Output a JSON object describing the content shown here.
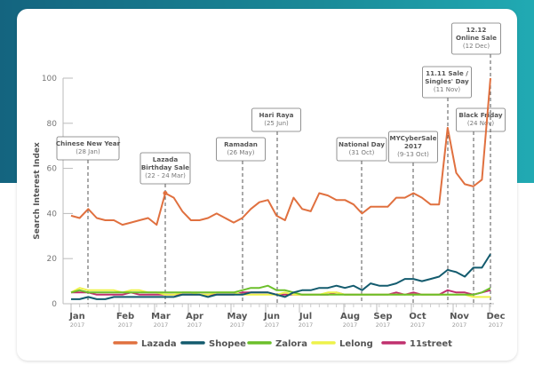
{
  "chart_data": {
    "type": "line",
    "title": "",
    "xlabel": "",
    "ylabel": "Search Interest Index",
    "ylim": [
      0,
      100
    ],
    "yticks": [
      0,
      20,
      40,
      60,
      80,
      100
    ],
    "grid": false,
    "legend_position": "bottom",
    "x_ticks": [
      {
        "month": "Jan",
        "year": "2017"
      },
      {
        "month": "Feb",
        "year": "2017"
      },
      {
        "month": "Mar",
        "year": "2017"
      },
      {
        "month": "Apr",
        "year": "2017"
      },
      {
        "month": "May",
        "year": "2017"
      },
      {
        "month": "Jun",
        "year": "2017"
      },
      {
        "month": "Jul",
        "year": "2017"
      },
      {
        "month": "Aug",
        "year": "2017"
      },
      {
        "month": "Sep",
        "year": "2017"
      },
      {
        "month": "Oct",
        "year": "2017"
      },
      {
        "month": "Nov",
        "year": "2017"
      },
      {
        "month": "Dec",
        "year": "2017"
      }
    ],
    "x_description": "weekly, Jan 2017 to Dec 2017",
    "series": [
      {
        "name": "Lazada",
        "color": "#e0703f",
        "values": [
          39,
          38,
          42,
          38,
          37,
          37,
          35,
          36,
          37,
          38,
          35,
          49,
          47,
          41,
          37,
          37,
          38,
          40,
          38,
          36,
          38,
          42,
          45,
          46,
          39,
          37,
          47,
          42,
          41,
          49,
          48,
          46,
          46,
          44,
          40,
          43,
          43,
          43,
          47,
          47,
          49,
          47,
          44,
          44,
          78,
          58,
          53,
          52,
          55,
          100
        ]
      },
      {
        "name": "Shopee",
        "color": "#135b6e",
        "values": [
          2,
          2,
          3,
          2,
          2,
          3,
          3,
          3,
          3,
          3,
          3,
          3,
          3,
          4,
          4,
          4,
          3,
          4,
          4,
          4,
          4,
          5,
          5,
          5,
          4,
          3,
          5,
          6,
          6,
          7,
          7,
          8,
          7,
          8,
          6,
          9,
          8,
          8,
          9,
          11,
          11,
          10,
          11,
          12,
          15,
          14,
          12,
          16,
          16,
          22
        ]
      },
      {
        "name": "Zalora",
        "color": "#6bbf2a",
        "values": [
          5,
          6,
          5,
          5,
          5,
          5,
          5,
          5,
          5,
          5,
          5,
          5,
          5,
          5,
          5,
          5,
          5,
          5,
          5,
          5,
          6,
          7,
          7,
          8,
          6,
          6,
          5,
          4,
          4,
          4,
          4,
          4,
          4,
          4,
          4,
          4,
          4,
          4,
          4,
          4,
          4,
          4,
          4,
          4,
          4,
          4,
          4,
          4,
          5,
          7
        ]
      },
      {
        "name": "Lelong",
        "color": "#eef24a",
        "values": [
          5,
          7,
          6,
          6,
          6,
          6,
          5,
          6,
          6,
          5,
          5,
          4,
          4,
          5,
          5,
          4,
          4,
          5,
          5,
          5,
          4,
          4,
          4,
          4,
          4,
          5,
          4,
          4,
          4,
          4,
          5,
          5,
          4,
          4,
          4,
          4,
          4,
          4,
          4,
          4,
          4,
          4,
          4,
          4,
          4,
          4,
          4,
          3,
          3,
          3
        ]
      },
      {
        "name": "11street",
        "color": "#c0306e",
        "values": [
          5,
          5,
          5,
          4,
          4,
          4,
          4,
          5,
          4,
          4,
          4,
          4,
          4,
          4,
          4,
          4,
          4,
          4,
          4,
          4,
          5,
          5,
          5,
          5,
          4,
          4,
          4,
          4,
          4,
          4,
          4,
          5,
          4,
          4,
          4,
          4,
          4,
          4,
          5,
          4,
          5,
          4,
          4,
          4,
          6,
          5,
          5,
          4,
          5,
          6
        ]
      }
    ],
    "annotations": [
      {
        "title": [
          "Chinese New Year"
        ],
        "date": "(28 Jan)"
      },
      {
        "title": [
          "Lazada",
          "Birthday Sale"
        ],
        "date": "(22 - 24 Mar)"
      },
      {
        "title": [
          "Ramadan"
        ],
        "date": "(26 May)"
      },
      {
        "title": [
          "Hari Raya"
        ],
        "date": "(25 Jun)"
      },
      {
        "title": [
          "National Day"
        ],
        "date": "(31 Oct)"
      },
      {
        "title": [
          "MYCyberSale",
          "2017"
        ],
        "date": "(9-13 Oct)"
      },
      {
        "title": [
          "11.11 Sale /",
          "Singles' Day"
        ],
        "date": "(11 Nov)"
      },
      {
        "title": [
          "Black Friday"
        ],
        "date": "(24 Nov)"
      },
      {
        "title": [
          "12.12",
          "Online Sale"
        ],
        "date": "(12 Dec)"
      }
    ]
  }
}
